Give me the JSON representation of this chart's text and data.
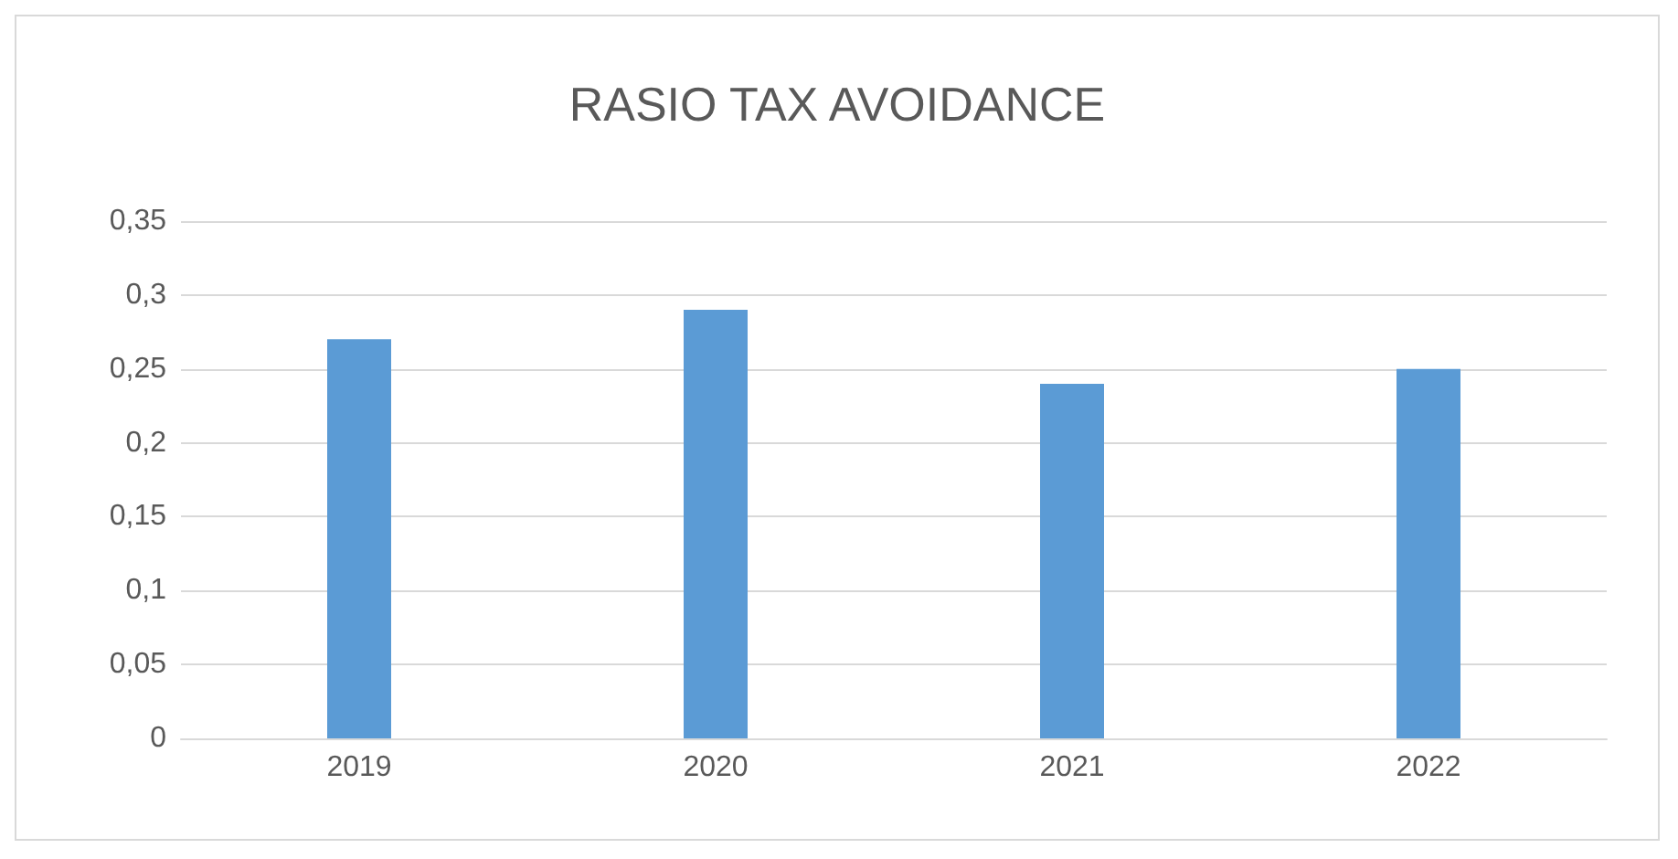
{
  "chart_data": {
    "type": "bar",
    "title": "RASIO TAX AVOIDANCE",
    "categories": [
      "2019",
      "2020",
      "2021",
      "2022"
    ],
    "values": [
      0.27,
      0.29,
      0.24,
      0.25
    ],
    "color": "#5b9bd5",
    "ylim": [
      0,
      0.35
    ],
    "yticks": [
      {
        "value": 0,
        "label": "0"
      },
      {
        "value": 0.05,
        "label": "0,05"
      },
      {
        "value": 0.1,
        "label": "0,1"
      },
      {
        "value": 0.15,
        "label": "0,15"
      },
      {
        "value": 0.2,
        "label": "0,2"
      },
      {
        "value": 0.25,
        "label": "0,25"
      },
      {
        "value": 0.3,
        "label": "0,3"
      },
      {
        "value": 0.35,
        "label": "0,35"
      }
    ],
    "grid": "y"
  }
}
